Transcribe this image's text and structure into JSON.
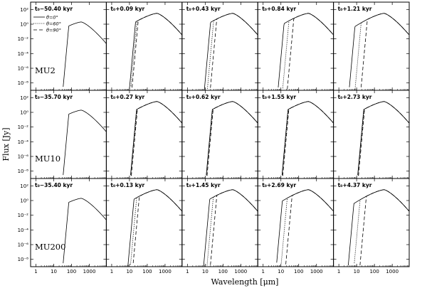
{
  "figure": {
    "ylabel": "Flux [Jy]",
    "xlabel": "Wavelength [μm]",
    "legend": {
      "placement": "top-left of first panel",
      "entries": [
        {
          "label": "θ=0°",
          "style": "solid"
        },
        {
          "label": "θ=60°",
          "style": "dotted"
        },
        {
          "label": "θ=90°",
          "style": "dashed"
        }
      ]
    },
    "x_tick_labels": [
      "1",
      "10",
      "100",
      "1000"
    ],
    "y_tick_labels": [
      "10²",
      "10⁰",
      "10⁻²",
      "10⁻⁴",
      "10⁻⁶",
      "10⁻⁸"
    ]
  },
  "chart_data": {
    "type": "line",
    "layout": "grid 3 rows x 5 columns, shared axes",
    "x_scale": "log",
    "y_scale": "log",
    "xlabel": "Wavelength [μm]",
    "ylabel": "Flux [Jy]",
    "xlim": [
      0.5,
      9000
    ],
    "ylim": [
      1e-09,
      1000.0
    ],
    "grid": false,
    "series_styles": {
      "theta=0": "solid",
      "theta=60": "dotted",
      "theta=90": "dashed"
    },
    "rows": [
      {
        "label": "MU2",
        "panels": [
          {
            "title": "t₀−50.40 kyr",
            "peak_flux": 2.0,
            "cutoff_um": 70,
            "inclination_spread": 0
          },
          {
            "title": "t₀+0.09 kyr",
            "peak_flux": 30,
            "cutoff_um": 22,
            "inclination_spread": 0.15
          },
          {
            "title": "t₀+0.43 kyr",
            "peak_flux": 30,
            "cutoff_um": 20,
            "inclination_spread": 0.35
          },
          {
            "title": "t₀+0.84 kyr",
            "peak_flux": 30,
            "cutoff_um": 15,
            "inclination_spread": 0.55
          },
          {
            "title": "t₀+1.21 kyr",
            "peak_flux": 30,
            "cutoff_um": 8,
            "inclination_spread": 0.7
          }
        ]
      },
      {
        "label": "MU10",
        "panels": [
          {
            "title": "t₀−35.70 kyr",
            "peak_flux": 2.0,
            "cutoff_um": 70,
            "inclination_spread": 0
          },
          {
            "title": "t₀+0.27 kyr",
            "peak_flux": 30,
            "cutoff_um": 25,
            "inclination_spread": 0.05
          },
          {
            "title": "t₀+0.62 kyr",
            "peak_flux": 30,
            "cutoff_um": 25,
            "inclination_spread": 0.05
          },
          {
            "title": "t₀+1.55 kyr",
            "peak_flux": 30,
            "cutoff_um": 25,
            "inclination_spread": 0.05
          },
          {
            "title": "t₀+2.73 kyr",
            "peak_flux": 30,
            "cutoff_um": 25,
            "inclination_spread": 0.05
          }
        ]
      },
      {
        "label": "MU200",
        "panels": [
          {
            "title": "t₀−35.40 kyr",
            "peak_flux": 2.0,
            "cutoff_um": 70,
            "inclination_spread": 0
          },
          {
            "title": "t₀+0.13 kyr",
            "peak_flux": 30,
            "cutoff_um": 18,
            "inclination_spread": 0.3
          },
          {
            "title": "t₀+1.45 kyr",
            "peak_flux": 30,
            "cutoff_um": 18,
            "inclination_spread": 0.4
          },
          {
            "title": "t₀+2.69 kyr",
            "peak_flux": 30,
            "cutoff_um": 12,
            "inclination_spread": 0.55
          },
          {
            "title": "t₀+4.37 kyr",
            "peak_flux": 30,
            "cutoff_um": 7,
            "inclination_spread": 0.7
          }
        ]
      }
    ]
  }
}
